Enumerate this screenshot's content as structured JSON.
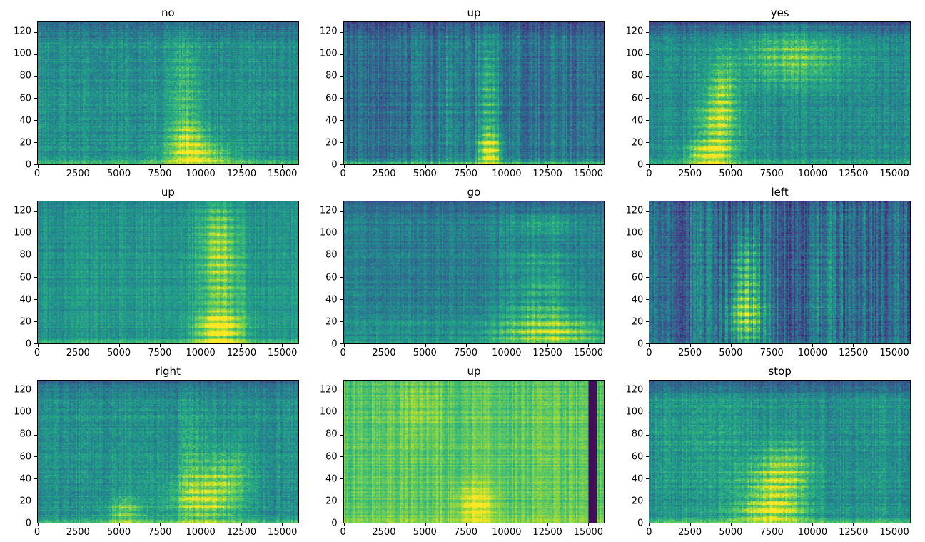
{
  "figure": {
    "background": "#ffffff",
    "rows": 3,
    "cols": 3,
    "colormap": "viridis",
    "viridis_hex": [
      "#440154",
      "#472c7a",
      "#3b518b",
      "#2c718e",
      "#21908d",
      "#27ad81",
      "#5cc863",
      "#aadc32",
      "#fde725"
    ]
  },
  "chart_data": [
    {
      "type": "heatmap",
      "title": "no",
      "xlim": [
        0,
        16000
      ],
      "ylim": [
        0,
        129
      ],
      "xticks": [
        0,
        2500,
        5000,
        7500,
        10000,
        12500,
        15000
      ],
      "yticks": [
        0,
        20,
        40,
        60,
        80,
        100,
        120
      ],
      "colormap": "viridis",
      "render": {
        "seed": 11,
        "base": 0.5,
        "noise": 0.17,
        "bottom_band": 0.22,
        "top_dark": 0.18,
        "blobs": [
          {
            "x": 9800,
            "y": 8,
            "sx": 1400,
            "sy": 8,
            "amp": 0.45
          },
          {
            "x": 9300,
            "y": 25,
            "sx": 900,
            "sy": 12,
            "amp": 0.3
          },
          {
            "x": 9100,
            "y": 70,
            "sx": 750,
            "sy": 35,
            "amp": 0.22
          }
        ]
      }
    },
    {
      "type": "heatmap",
      "title": "up",
      "xlim": [
        0,
        16000
      ],
      "ylim": [
        0,
        129
      ],
      "xticks": [
        0,
        2500,
        5000,
        7500,
        10000,
        12500,
        15000
      ],
      "yticks": [
        0,
        20,
        40,
        60,
        80,
        100,
        120
      ],
      "colormap": "viridis",
      "render": {
        "seed": 22,
        "base": 0.38,
        "noise": 0.17,
        "bottom_band": 0.3,
        "top_dark": 0.1,
        "col_noise": 0.1,
        "blobs": [
          {
            "x": 9000,
            "y": 12,
            "sx": 550,
            "sy": 11,
            "amp": 0.55
          },
          {
            "x": 8900,
            "y": 60,
            "sx": 450,
            "sy": 45,
            "amp": 0.33
          },
          {
            "x": 6400,
            "y": 50,
            "sx": 300,
            "sy": 55,
            "amp": 0.18
          }
        ]
      }
    },
    {
      "type": "heatmap",
      "title": "yes",
      "xlim": [
        0,
        16000
      ],
      "ylim": [
        0,
        129
      ],
      "xticks": [
        0,
        2500,
        5000,
        7500,
        10000,
        12500,
        15000
      ],
      "yticks": [
        0,
        20,
        40,
        60,
        80,
        100,
        120
      ],
      "colormap": "viridis",
      "render": {
        "seed": 33,
        "base": 0.48,
        "noise": 0.17,
        "bottom_band": 0.15,
        "top_dark": 0.22,
        "blobs": [
          {
            "x": 3600,
            "y": 8,
            "sx": 1000,
            "sy": 8,
            "amp": 0.45
          },
          {
            "x": 4200,
            "y": 35,
            "sx": 900,
            "sy": 22,
            "amp": 0.42
          },
          {
            "x": 4500,
            "y": 70,
            "sx": 650,
            "sy": 20,
            "amp": 0.25
          },
          {
            "x": 8800,
            "y": 97,
            "sx": 2200,
            "sy": 20,
            "amp": 0.32
          }
        ]
      }
    },
    {
      "type": "heatmap",
      "title": "up",
      "xlim": [
        0,
        16000
      ],
      "ylim": [
        0,
        129
      ],
      "xticks": [
        0,
        2500,
        5000,
        7500,
        10000,
        12500,
        15000
      ],
      "yticks": [
        0,
        20,
        40,
        60,
        80,
        100,
        120
      ],
      "colormap": "viridis",
      "render": {
        "seed": 44,
        "base": 0.52,
        "noise": 0.13,
        "bottom_band": 0.15,
        "top_dark": 0.05,
        "blobs": [
          {
            "x": 11200,
            "y": 12,
            "sx": 1100,
            "sy": 11,
            "amp": 0.5
          },
          {
            "x": 11300,
            "y": 55,
            "sx": 950,
            "sy": 40,
            "amp": 0.3
          },
          {
            "x": 11100,
            "y": 100,
            "sx": 850,
            "sy": 25,
            "amp": 0.22
          }
        ]
      }
    },
    {
      "type": "heatmap",
      "title": "go",
      "xlim": [
        0,
        16000
      ],
      "ylim": [
        0,
        129
      ],
      "xticks": [
        0,
        2500,
        5000,
        7500,
        10000,
        12500,
        15000
      ],
      "yticks": [
        0,
        20,
        40,
        60,
        80,
        100,
        120
      ],
      "colormap": "viridis",
      "render": {
        "seed": 55,
        "base": 0.42,
        "noise": 0.15,
        "bottom_band": 0.1,
        "top_dark": 0.12,
        "blobs": [
          {
            "x": 12800,
            "y": 10,
            "sx": 2400,
            "sy": 9,
            "amp": 0.55
          },
          {
            "x": 12200,
            "y": 30,
            "sx": 1700,
            "sy": 8,
            "amp": 0.28
          },
          {
            "x": 12400,
            "y": 52,
            "sx": 1500,
            "sy": 8,
            "amp": 0.24
          },
          {
            "x": 12000,
            "y": 75,
            "sx": 1500,
            "sy": 8,
            "amp": 0.2
          },
          {
            "x": 12300,
            "y": 108,
            "sx": 1600,
            "sy": 9,
            "amp": 0.2
          },
          {
            "x": 4000,
            "y": 15,
            "sx": 4000,
            "sy": 10,
            "amp": 0.12
          }
        ]
      }
    },
    {
      "type": "heatmap",
      "title": "left",
      "xlim": [
        0,
        16000
      ],
      "ylim": [
        0,
        129
      ],
      "xticks": [
        0,
        2500,
        5000,
        7500,
        10000,
        12500,
        15000
      ],
      "yticks": [
        0,
        20,
        40,
        60,
        80,
        100,
        120
      ],
      "colormap": "viridis",
      "render": {
        "seed": 66,
        "base": 0.33,
        "noise": 0.2,
        "bottom_band": 0.08,
        "top_dark": 0.05,
        "col_noise": 0.16,
        "blobs": [
          {
            "x": 5900,
            "y": 20,
            "sx": 800,
            "sy": 16,
            "amp": 0.55
          },
          {
            "x": 5900,
            "y": 55,
            "sx": 650,
            "sy": 20,
            "amp": 0.35
          },
          {
            "x": 6000,
            "y": 85,
            "sx": 600,
            "sy": 20,
            "amp": 0.2
          },
          {
            "x": 10600,
            "y": 55,
            "sx": 700,
            "sy": 50,
            "amp": 0.15
          },
          {
            "x": 3000,
            "y": 60,
            "sx": 500,
            "sy": 60,
            "amp": 0.1
          }
        ]
      }
    },
    {
      "type": "heatmap",
      "title": "right",
      "xlim": [
        0,
        16000
      ],
      "ylim": [
        0,
        129
      ],
      "xticks": [
        0,
        2500,
        5000,
        7500,
        10000,
        12500,
        15000
      ],
      "yticks": [
        0,
        20,
        40,
        60,
        80,
        100,
        120
      ],
      "colormap": "viridis",
      "render": {
        "seed": 77,
        "base": 0.5,
        "noise": 0.17,
        "bottom_band": 0.2,
        "top_dark": 0.18,
        "blobs": [
          {
            "x": 10200,
            "y": 20,
            "sx": 1600,
            "sy": 16,
            "amp": 0.42
          },
          {
            "x": 5300,
            "y": 10,
            "sx": 800,
            "sy": 10,
            "amp": 0.33
          },
          {
            "x": 11600,
            "y": 45,
            "sx": 1100,
            "sy": 18,
            "amp": 0.25
          },
          {
            "x": 9500,
            "y": 60,
            "sx": 550,
            "sy": 30,
            "amp": 0.15
          }
        ]
      }
    },
    {
      "type": "heatmap",
      "title": "up",
      "xlim": [
        0,
        16000
      ],
      "ylim": [
        0,
        129
      ],
      "xticks": [
        0,
        2500,
        5000,
        7500,
        10000,
        12500,
        15000
      ],
      "yticks": [
        0,
        20,
        40,
        60,
        80,
        100,
        120
      ],
      "colormap": "viridis",
      "render": {
        "seed": 88,
        "base": 0.75,
        "noise": 0.1,
        "bottom_band": 0.1,
        "top_dark": 0.05,
        "col_noise": 0.07,
        "blobs": [
          {
            "x": 8100,
            "y": 16,
            "sx": 900,
            "sy": 13,
            "amp": 0.28
          },
          {
            "x": 4800,
            "y": 105,
            "sx": 900,
            "sy": 20,
            "amp": 0.1
          }
        ],
        "dark_columns": [
          {
            "x0": 15050,
            "x1": 15620,
            "level": 0.03
          }
        ]
      }
    },
    {
      "type": "heatmap",
      "title": "stop",
      "xlim": [
        0,
        16000
      ],
      "ylim": [
        0,
        129
      ],
      "xticks": [
        0,
        2500,
        5000,
        7500,
        10000,
        12500,
        15000
      ],
      "yticks": [
        0,
        20,
        40,
        60,
        80,
        100,
        120
      ],
      "colormap": "viridis",
      "render": {
        "seed": 99,
        "base": 0.5,
        "noise": 0.17,
        "bottom_band": 0.18,
        "top_dark": 0.2,
        "blobs": [
          {
            "x": 7800,
            "y": 30,
            "sx": 1400,
            "sy": 20,
            "amp": 0.4
          },
          {
            "x": 7300,
            "y": 10,
            "sx": 1500,
            "sy": 9,
            "amp": 0.3
          },
          {
            "x": 8500,
            "y": 55,
            "sx": 1200,
            "sy": 15,
            "amp": 0.2
          },
          {
            "x": 3500,
            "y": 70,
            "sx": 2200,
            "sy": 40,
            "amp": 0.08
          }
        ]
      }
    }
  ]
}
